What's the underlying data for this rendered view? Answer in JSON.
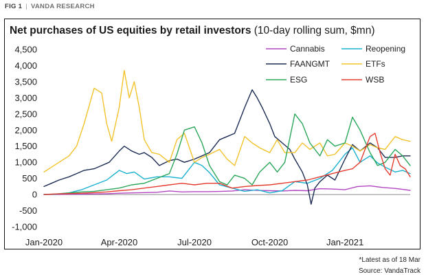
{
  "header": {
    "fig": "FIG 1",
    "separator": "|",
    "source_name": "VANDA RESEARCH"
  },
  "footnotes": {
    "latest": "*Latest as of 18 Mar",
    "source": "Source: VandaTrack"
  },
  "chart_data": {
    "type": "line",
    "title": "Net purchases of US equities by retail investors",
    "subtitle": "(10-day rolling sum, $mn)",
    "xlabel": "",
    "ylabel": "",
    "ylim": [
      -1000,
      4500
    ],
    "yticks": [
      -1000,
      -500,
      0,
      500,
      1000,
      1500,
      2000,
      2500,
      3000,
      3500,
      4000,
      4500
    ],
    "ytick_labels": [
      "-1,000",
      "-500",
      "0",
      "500",
      "1,000",
      "1,500",
      "2,000",
      "2,500",
      "3,000",
      "3,500",
      "4,000",
      "4,500"
    ],
    "xlim": [
      0,
      14.6
    ],
    "xticks": [
      0,
      3,
      6,
      9,
      12
    ],
    "xtick_labels": [
      "Jan-2020",
      "Apr-2020",
      "Jul-2020",
      "Oct-2020",
      "Jan-2021"
    ],
    "x_unit": "months since Jan-2020",
    "grid": false,
    "legend": "top-right",
    "series": [
      {
        "name": "Cannabis",
        "color": "#b144c0",
        "x": [
          0,
          0.5,
          1,
          1.5,
          2,
          2.5,
          3,
          3.5,
          4,
          4.5,
          5,
          5.5,
          6,
          6.5,
          7,
          7.5,
          8,
          8.5,
          9,
          9.5,
          10,
          10.5,
          11,
          11.5,
          12,
          12.5,
          13,
          13.5,
          14,
          14.3,
          14.6
        ],
        "y": [
          0,
          5,
          10,
          15,
          20,
          25,
          40,
          50,
          60,
          70,
          110,
          80,
          90,
          90,
          95,
          110,
          150,
          130,
          120,
          110,
          130,
          120,
          180,
          170,
          150,
          250,
          270,
          220,
          190,
          160,
          130
        ]
      },
      {
        "name": "Reopening",
        "color": "#17b0cf",
        "x": [
          0,
          0.5,
          1,
          1.5,
          2,
          2.5,
          3,
          3.3,
          3.6,
          4,
          4.5,
          5,
          5.5,
          6,
          6.3,
          6.6,
          7,
          7.5,
          8,
          8.5,
          9,
          9.5,
          10,
          10.5,
          11,
          11.5,
          12,
          12.3,
          12.6,
          13,
          13.3,
          13.6,
          14,
          14.3,
          14.6
        ],
        "y": [
          0,
          10,
          50,
          150,
          300,
          450,
          750,
          650,
          700,
          480,
          550,
          550,
          500,
          1000,
          900,
          680,
          300,
          200,
          100,
          150,
          50,
          120,
          400,
          350,
          500,
          750,
          1250,
          1450,
          1000,
          1200,
          980,
          850,
          700,
          750,
          650
        ]
      },
      {
        "name": "FAANGMT",
        "color": "#1b2a52",
        "x": [
          0,
          0.3,
          0.6,
          1,
          1.3,
          1.6,
          2,
          2.3,
          2.6,
          3,
          3.2,
          3.5,
          3.8,
          4,
          4.3,
          4.6,
          5,
          5.3,
          5.6,
          6,
          6.3,
          6.6,
          7,
          7.3,
          7.6,
          8,
          8.3,
          8.5,
          8.7,
          9,
          9.2,
          9.5,
          9.8,
          10,
          10.3,
          10.5,
          10.65,
          10.8,
          11,
          11.3,
          11.6,
          12,
          12.3,
          12.6,
          13,
          13.3,
          13.6,
          14,
          14.3,
          14.6
        ],
        "y": [
          250,
          350,
          450,
          550,
          650,
          750,
          800,
          900,
          1000,
          1350,
          1500,
          1350,
          1250,
          1300,
          1150,
          900,
          1050,
          1100,
          1000,
          1100,
          1200,
          1300,
          1700,
          1800,
          1900,
          2700,
          3250,
          3000,
          2700,
          2200,
          1800,
          1600,
          1400,
          1100,
          700,
          300,
          -300,
          200,
          400,
          600,
          450,
          1100,
          1550,
          1350,
          1600,
          1450,
          1150,
          1150,
          1200,
          1200
        ]
      },
      {
        "name": "ETFs",
        "color": "#f2c229",
        "x": [
          0,
          0.3,
          0.6,
          1,
          1.3,
          1.6,
          2,
          2.3,
          2.5,
          2.7,
          3,
          3.2,
          3.4,
          3.6,
          3.8,
          4,
          4.3,
          4.6,
          5,
          5.3,
          5.6,
          6,
          6.3,
          6.6,
          7,
          7.3,
          7.6,
          8,
          8.3,
          8.6,
          9,
          9.3,
          9.6,
          10,
          10.3,
          10.6,
          11,
          11.3,
          11.6,
          12,
          12.3,
          12.6,
          13,
          13.3,
          13.6,
          14,
          14.3,
          14.6
        ],
        "y": [
          700,
          850,
          1000,
          1200,
          1500,
          2200,
          3300,
          3150,
          2200,
          1650,
          2700,
          3850,
          3000,
          3500,
          2700,
          1700,
          1300,
          1250,
          1000,
          1700,
          1900,
          1000,
          1150,
          1250,
          1400,
          1100,
          900,
          1800,
          1600,
          1450,
          1300,
          1700,
          1300,
          1300,
          1600,
          1400,
          1600,
          1200,
          1250,
          1600,
          1500,
          1350,
          1550,
          1450,
          1400,
          1800,
          1700,
          1650
        ]
      },
      {
        "name": "ESG",
        "color": "#2aa65a",
        "x": [
          0,
          0.5,
          1,
          1.5,
          2,
          2.5,
          3,
          3.5,
          4,
          4.5,
          5,
          5.3,
          5.6,
          6,
          6.3,
          6.6,
          7,
          7.3,
          7.6,
          8,
          8.3,
          8.6,
          9,
          9.3,
          9.6,
          10,
          10.3,
          10.6,
          11,
          11.3,
          11.6,
          12,
          12.3,
          12.6,
          13,
          13.3,
          13.6,
          14,
          14.3,
          14.6
        ],
        "y": [
          0,
          20,
          50,
          80,
          100,
          150,
          200,
          300,
          350,
          500,
          650,
          1250,
          2000,
          2100,
          1600,
          900,
          400,
          300,
          600,
          500,
          300,
          700,
          1000,
          700,
          1000,
          2500,
          2200,
          1600,
          1200,
          1700,
          1500,
          1600,
          2400,
          2000,
          1300,
          900,
          1000,
          1400,
          1200,
          900
        ]
      },
      {
        "name": "WSB",
        "color": "#e53a2e",
        "x": [
          0,
          0.5,
          1,
          1.5,
          2,
          2.5,
          3,
          3.5,
          4,
          4.5,
          5,
          5.5,
          6,
          6.5,
          7,
          7.5,
          8,
          8.5,
          9,
          9.5,
          10,
          10.5,
          11,
          11.5,
          12,
          12.3,
          12.6,
          13,
          13.2,
          13.4,
          13.6,
          13.8,
          14,
          14.2,
          14.4,
          14.6
        ],
        "y": [
          0,
          20,
          30,
          40,
          60,
          80,
          120,
          150,
          200,
          250,
          300,
          350,
          300,
          350,
          350,
          200,
          250,
          280,
          300,
          350,
          400,
          450,
          550,
          650,
          750,
          800,
          1000,
          1800,
          1900,
          1300,
          800,
          600,
          1250,
          900,
          800,
          550
        ]
      }
    ]
  }
}
